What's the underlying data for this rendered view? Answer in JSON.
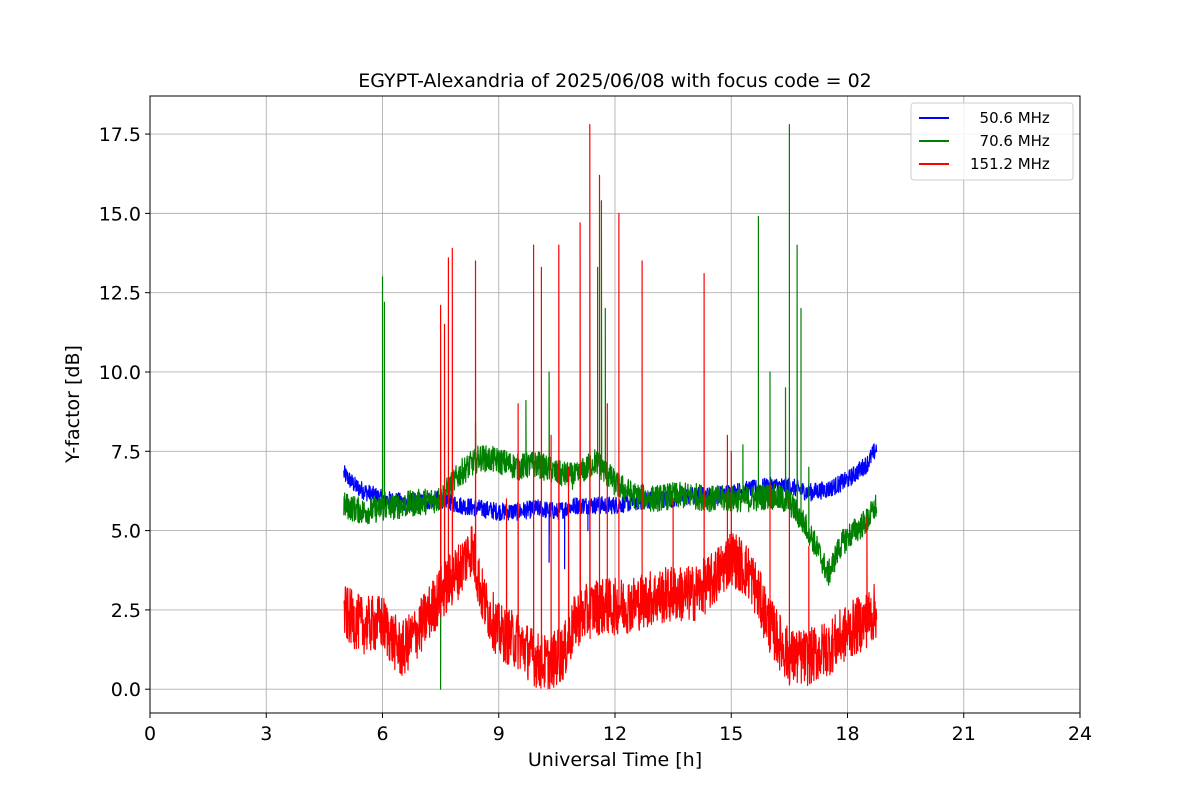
{
  "chart_data": {
    "type": "line",
    "title": "EGYPT-Alexandria of 2025/06/08 with focus code = 02",
    "xlabel": "Universal Time [h]",
    "ylabel": "Y-factor [dB]",
    "xlim": [
      0,
      24
    ],
    "ylim": [
      -0.75,
      18.7
    ],
    "xticks": [
      0,
      3,
      6,
      9,
      12,
      15,
      18,
      21,
      24
    ],
    "xtick_labels": [
      "0",
      "3",
      "6",
      "9",
      "12",
      "15",
      "18",
      "21",
      "24"
    ],
    "yticks": [
      0.0,
      2.5,
      5.0,
      7.5,
      10.0,
      12.5,
      15.0,
      17.5
    ],
    "ytick_labels": [
      "0.0",
      "2.5",
      "5.0",
      "7.5",
      "10.0",
      "12.5",
      "15.0",
      "17.5"
    ],
    "grid": true,
    "legend_position": "top-right",
    "series": [
      {
        "name": "  50.6 MHz",
        "color": "#0000ff",
        "noise": 0.28,
        "points": [
          [
            5.0,
            6.8
          ],
          [
            5.3,
            6.4
          ],
          [
            5.6,
            6.2
          ],
          [
            6.0,
            6.0
          ],
          [
            6.5,
            5.9
          ],
          [
            7.0,
            5.9
          ],
          [
            7.5,
            6.0
          ],
          [
            8.0,
            5.8
          ],
          [
            8.5,
            5.7
          ],
          [
            9.0,
            5.6
          ],
          [
            9.5,
            5.6
          ],
          [
            10.0,
            5.7
          ],
          [
            10.5,
            5.6
          ],
          [
            11.0,
            5.8
          ],
          [
            11.5,
            5.8
          ],
          [
            12.0,
            5.8
          ],
          [
            12.5,
            5.9
          ],
          [
            13.0,
            6.0
          ],
          [
            13.5,
            6.0
          ],
          [
            14.0,
            6.1
          ],
          [
            14.5,
            6.1
          ],
          [
            15.0,
            6.2
          ],
          [
            15.5,
            6.3
          ],
          [
            16.0,
            6.4
          ],
          [
            16.5,
            6.4
          ],
          [
            17.0,
            6.2
          ],
          [
            17.5,
            6.3
          ],
          [
            18.0,
            6.6
          ],
          [
            18.5,
            7.1
          ],
          [
            18.75,
            7.6
          ]
        ],
        "spikes": [
          [
            10.3,
            4.0
          ],
          [
            10.7,
            3.8
          ],
          [
            11.3,
            5.0
          ]
        ]
      },
      {
        "name": "  70.6 MHz",
        "color": "#008000",
        "noise": 0.42,
        "points": [
          [
            5.0,
            5.8
          ],
          [
            5.5,
            5.6
          ],
          [
            6.0,
            5.7
          ],
          [
            6.5,
            5.8
          ],
          [
            7.0,
            5.9
          ],
          [
            7.5,
            6.0
          ],
          [
            8.0,
            6.8
          ],
          [
            8.5,
            7.3
          ],
          [
            9.0,
            7.2
          ],
          [
            9.5,
            7.0
          ],
          [
            10.0,
            7.1
          ],
          [
            10.5,
            6.8
          ],
          [
            11.0,
            6.7
          ],
          [
            11.5,
            7.2
          ],
          [
            12.0,
            6.5
          ],
          [
            12.5,
            6.1
          ],
          [
            13.0,
            6.0
          ],
          [
            13.5,
            6.1
          ],
          [
            14.0,
            6.1
          ],
          [
            14.5,
            6.0
          ],
          [
            15.0,
            6.0
          ],
          [
            15.5,
            6.0
          ],
          [
            16.0,
            6.1
          ],
          [
            16.5,
            5.9
          ],
          [
            17.0,
            5.0
          ],
          [
            17.3,
            4.2
          ],
          [
            17.5,
            3.6
          ],
          [
            17.8,
            4.5
          ],
          [
            18.0,
            4.8
          ],
          [
            18.5,
            5.3
          ],
          [
            18.75,
            5.8
          ]
        ],
        "spikes": [
          [
            6.0,
            13.0
          ],
          [
            6.05,
            12.2
          ],
          [
            7.5,
            0.0
          ],
          [
            8.4,
            8.4
          ],
          [
            9.7,
            9.1
          ],
          [
            10.3,
            10.0
          ],
          [
            11.55,
            13.3
          ],
          [
            11.65,
            15.4
          ],
          [
            11.75,
            12.0
          ],
          [
            15.3,
            7.7
          ],
          [
            15.7,
            14.9
          ],
          [
            16.0,
            10.0
          ],
          [
            16.4,
            9.5
          ],
          [
            16.5,
            17.8
          ],
          [
            16.7,
            14.0
          ],
          [
            16.8,
            12.0
          ],
          [
            17.0,
            7.0
          ]
        ]
      },
      {
        "name": "151.2 MHz",
        "color": "#ff0000",
        "noise": 0.9,
        "points": [
          [
            5.0,
            2.4
          ],
          [
            5.5,
            2.0
          ],
          [
            6.0,
            2.1
          ],
          [
            6.3,
            1.5
          ],
          [
            6.5,
            1.2
          ],
          [
            7.0,
            2.0
          ],
          [
            7.5,
            3.0
          ],
          [
            8.0,
            3.8
          ],
          [
            8.3,
            4.5
          ],
          [
            8.6,
            2.8
          ],
          [
            9.0,
            1.8
          ],
          [
            9.5,
            1.5
          ],
          [
            10.0,
            0.9
          ],
          [
            10.3,
            0.8
          ],
          [
            10.7,
            1.2
          ],
          [
            11.0,
            2.2
          ],
          [
            11.5,
            2.6
          ],
          [
            12.0,
            2.6
          ],
          [
            12.5,
            2.7
          ],
          [
            13.0,
            2.9
          ],
          [
            13.5,
            3.0
          ],
          [
            14.0,
            3.0
          ],
          [
            14.5,
            3.4
          ],
          [
            15.0,
            4.2
          ],
          [
            15.5,
            3.6
          ],
          [
            16.0,
            2.0
          ],
          [
            16.5,
            1.0
          ],
          [
            17.0,
            1.0
          ],
          [
            17.5,
            1.3
          ],
          [
            18.0,
            1.8
          ],
          [
            18.5,
            2.2
          ],
          [
            18.75,
            2.5
          ]
        ],
        "spikes": [
          [
            7.5,
            12.1
          ],
          [
            7.6,
            11.5
          ],
          [
            7.7,
            13.6
          ],
          [
            7.8,
            13.9
          ],
          [
            8.4,
            13.5
          ],
          [
            9.2,
            6.0
          ],
          [
            9.5,
            9.0
          ],
          [
            9.9,
            14.0
          ],
          [
            10.1,
            13.3
          ],
          [
            10.35,
            8.0
          ],
          [
            10.55,
            14.0
          ],
          [
            10.8,
            7.0
          ],
          [
            11.1,
            14.7
          ],
          [
            11.35,
            17.8
          ],
          [
            11.6,
            16.2
          ],
          [
            11.8,
            9.0
          ],
          [
            12.1,
            15.0
          ],
          [
            12.7,
            13.5
          ],
          [
            13.5,
            6.0
          ],
          [
            14.3,
            13.1
          ],
          [
            14.9,
            8.0
          ],
          [
            15.0,
            7.5
          ],
          [
            16.0,
            6.5
          ],
          [
            16.5,
            6.0
          ],
          [
            17.0,
            4.5
          ],
          [
            18.5,
            5.4
          ]
        ]
      }
    ]
  }
}
